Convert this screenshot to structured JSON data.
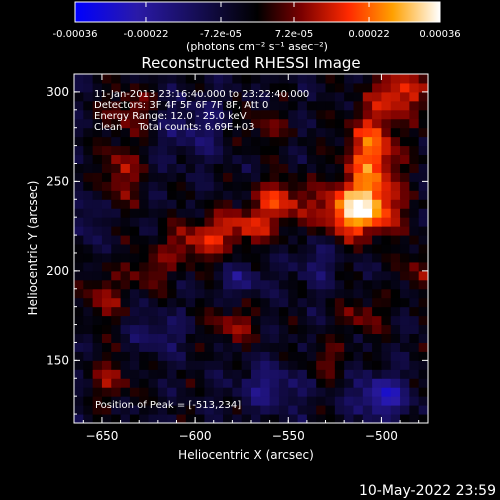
{
  "page": {
    "footer_date": "10-May-2022 23:59"
  },
  "colorbar": {
    "tick_labels": [
      "-0.00036",
      "-0.00022",
      "-7.2e-05",
      "7.2e-05",
      "0.00022",
      "0.00036"
    ],
    "tick_values": [
      -0.00036,
      -0.00022,
      -7.2e-05,
      7.2e-05,
      0.00022,
      0.00036
    ],
    "range": [
      -0.00036,
      0.00036
    ],
    "units_label": "(photons cm⁻² s⁻¹ asec⁻²)",
    "colors": [
      "#0000ff",
      "#2a1aa8",
      "#000000",
      "#7a0000",
      "#ff2a00",
      "#ffa000",
      "#ffffff"
    ]
  },
  "chart_data": {
    "type": "heatmap",
    "title": "Reconstructed RHESSI Image",
    "xlabel": "Heliocentric X (arcsec)",
    "ylabel": "Heliocentric Y (arcsec)",
    "xlim": [
      -665,
      -475
    ],
    "ylim": [
      115,
      310
    ],
    "x_ticks": [
      -650,
      -600,
      -550,
      -500
    ],
    "x_tick_labels": [
      "−650",
      "−600",
      "−550",
      "−500"
    ],
    "y_ticks": [
      150,
      200,
      250,
      300
    ],
    "y_tick_labels": [
      "150",
      "200",
      "250",
      "300"
    ],
    "annotations": [
      "11-Jan-2013 23:16:40.000 to 23:22:40.000",
      "Detectors: 3F 4F 5F 6F 7F 8F, Att 0",
      "Energy Range: 12.0 - 25.0 keV",
      "Clean     Total counts: 6.69E+03"
    ],
    "peak_label": "Position of Peak = [-513,234]",
    "peak_position": [
      -513,
      234
    ],
    "sources": [
      {
        "x": -513,
        "y": 234,
        "value": 0.00036,
        "sx": 14,
        "sy": 10
      },
      {
        "x": -505,
        "y": 265,
        "value": 0.00026,
        "sx": 10,
        "sy": 18
      },
      {
        "x": -490,
        "y": 300,
        "value": 0.00022,
        "sx": 9,
        "sy": 9
      },
      {
        "x": -555,
        "y": 240,
        "value": 0.0002,
        "sx": 10,
        "sy": 8
      },
      {
        "x": -575,
        "y": 225,
        "value": 0.00018,
        "sx": 14,
        "sy": 7
      },
      {
        "x": -600,
        "y": 215,
        "value": 0.00016,
        "sx": 12,
        "sy": 8
      },
      {
        "x": -640,
        "y": 255,
        "value": 0.00016,
        "sx": 7,
        "sy": 12
      },
      {
        "x": -625,
        "y": 200,
        "value": 0.00012,
        "sx": 8,
        "sy": 8
      },
      {
        "x": -650,
        "y": 185,
        "value": 0.00014,
        "sx": 7,
        "sy": 10
      },
      {
        "x": -635,
        "y": 290,
        "value": 0.00013,
        "sx": 9,
        "sy": 9
      },
      {
        "x": -645,
        "y": 140,
        "value": 0.00012,
        "sx": 8,
        "sy": 9
      },
      {
        "x": -580,
        "y": 170,
        "value": 0.00014,
        "sx": 9,
        "sy": 7
      },
      {
        "x": -510,
        "y": 175,
        "value": 0.00012,
        "sx": 8,
        "sy": 8
      },
      {
        "x": -480,
        "y": 200,
        "value": 0.00012,
        "sx": 6,
        "sy": 10
      },
      {
        "x": -530,
        "y": 150,
        "value": 0.0001,
        "sx": 8,
        "sy": 7
      },
      {
        "x": -565,
        "y": 280,
        "value": 0.0001,
        "sx": 10,
        "sy": 8
      },
      {
        "x": -600,
        "y": 280,
        "value": -0.0001,
        "sx": 14,
        "sy": 12
      },
      {
        "x": -575,
        "y": 195,
        "value": -0.00012,
        "sx": 8,
        "sy": 6
      },
      {
        "x": -620,
        "y": 165,
        "value": -0.0001,
        "sx": 10,
        "sy": 8
      },
      {
        "x": -560,
        "y": 135,
        "value": -0.00013,
        "sx": 12,
        "sy": 9
      },
      {
        "x": -500,
        "y": 130,
        "value": -0.00022,
        "sx": 10,
        "sy": 8
      },
      {
        "x": -535,
        "y": 205,
        "value": -9e-05,
        "sx": 8,
        "sy": 10
      },
      {
        "x": -660,
        "y": 230,
        "value": -9e-05,
        "sx": 6,
        "sy": 10
      }
    ]
  }
}
